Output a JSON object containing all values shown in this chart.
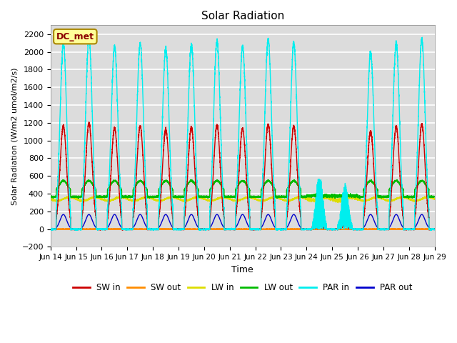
{
  "title": "Solar Radiation",
  "ylabel": "Solar Radiation (W/m2 umol/m2/s)",
  "xlabel": "Time",
  "ylim": [
    -200,
    2300
  ],
  "yticks": [
    -200,
    0,
    200,
    400,
    600,
    800,
    1000,
    1200,
    1400,
    1600,
    1800,
    2000,
    2200
  ],
  "xtick_labels": [
    "Jun 14",
    "Jun 15",
    "Jun 16",
    "Jun 17",
    "Jun 18",
    "Jun 19",
    "Jun 20",
    "Jun 21",
    "Jun 22",
    "Jun 23",
    "Jun 24",
    "Jun 25",
    "Jun 26",
    "Jun 27",
    "Jun 28",
    "Jun 29"
  ],
  "annotation_text": "DC_met",
  "annotation_color": "#8B0000",
  "annotation_bg": "#FFFF99",
  "bg_color": "#DCDCDC",
  "grid_color": "#FFFFFF",
  "series": {
    "SW_in": {
      "color": "#CC0000",
      "lw": 1.0
    },
    "SW_out": {
      "color": "#FF8C00",
      "lw": 1.0
    },
    "LW_in": {
      "color": "#DDDD00",
      "lw": 1.0
    },
    "LW_out": {
      "color": "#00BB00",
      "lw": 1.0
    },
    "PAR_in": {
      "color": "#00EEEE",
      "lw": 1.0
    },
    "PAR_out": {
      "color": "#0000CC",
      "lw": 1.0
    }
  },
  "legend": {
    "labels": [
      "SW in",
      "SW out",
      "LW in",
      "LW out",
      "PAR in",
      "PAR out"
    ],
    "colors": [
      "#CC0000",
      "#FF8C00",
      "#DDDD00",
      "#00BB00",
      "#00EEEE",
      "#0000CC"
    ],
    "ncol": 6
  },
  "n_days": 15,
  "figsize": [
    6.4,
    4.8
  ],
  "dpi": 100
}
